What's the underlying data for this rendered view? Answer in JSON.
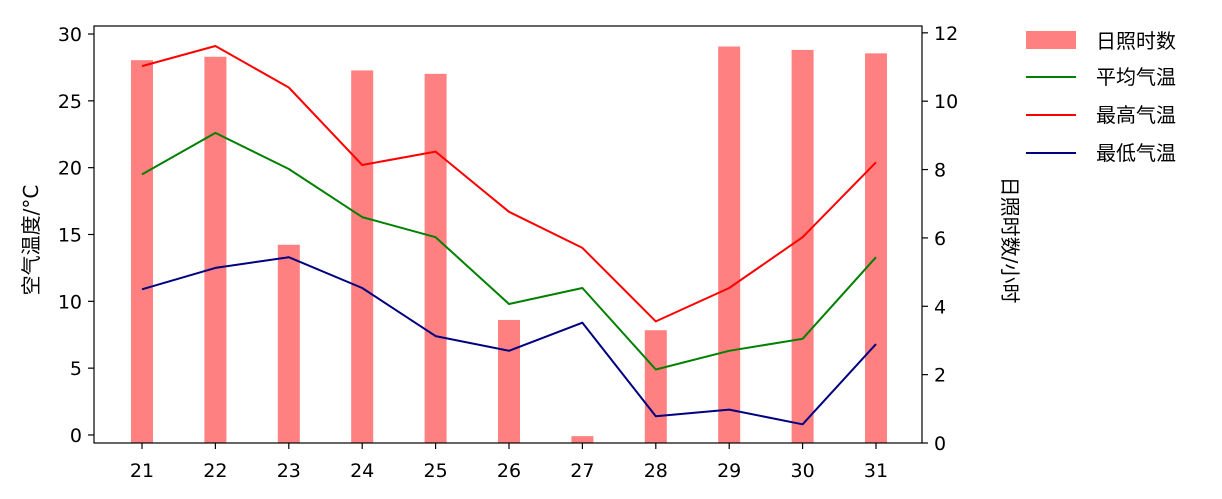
{
  "chart_data": {
    "type": "bar+line",
    "categories": [
      "21",
      "22",
      "23",
      "24",
      "25",
      "26",
      "27",
      "28",
      "29",
      "30",
      "31"
    ],
    "left_axis": {
      "label": "空气温度/°C",
      "range": [
        -0.6,
        30.6
      ],
      "ticks": [
        0,
        5,
        10,
        15,
        20,
        25,
        30
      ]
    },
    "right_axis": {
      "label": "日照时数/小时",
      "range": [
        0,
        12.2
      ],
      "ticks": [
        0,
        2,
        4,
        6,
        8,
        10,
        12
      ]
    },
    "bar_series": {
      "name": "日照时数",
      "axis": "right",
      "color": "#ff8080",
      "values": [
        11.2,
        11.3,
        5.8,
        10.9,
        10.8,
        3.6,
        0.2,
        3.3,
        11.6,
        11.5,
        11.4
      ]
    },
    "line_series": [
      {
        "name": "平均气温",
        "axis": "left",
        "color": "#008000",
        "values": [
          19.5,
          22.6,
          19.9,
          16.3,
          14.8,
          9.8,
          11.0,
          4.9,
          6.3,
          7.2,
          13.3
        ]
      },
      {
        "name": "最高气温",
        "axis": "left",
        "color": "#ff0000",
        "values": [
          27.6,
          29.1,
          26.0,
          20.2,
          21.2,
          16.7,
          14.0,
          8.5,
          11.0,
          14.8,
          20.4
        ]
      },
      {
        "name": "最低气温",
        "axis": "left",
        "color": "#000080",
        "values": [
          10.9,
          12.5,
          13.3,
          11.0,
          7.4,
          6.3,
          8.4,
          1.4,
          1.9,
          0.8,
          6.8
        ]
      }
    ],
    "legend": {
      "position": "outside-right",
      "entries": [
        "日照时数",
        "平均气温",
        "最高气温",
        "最低气温"
      ]
    },
    "grid": false
  }
}
